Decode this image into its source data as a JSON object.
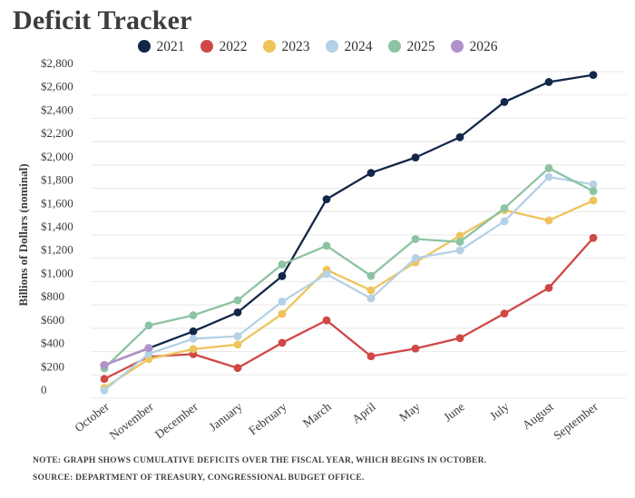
{
  "title": "Deficit Tracker",
  "footer": {
    "note": "NOTE: GRAPH SHOWS CUMULATIVE DEFICITS OVER THE FISCAL YEAR, WHICH BEGINS IN OCTOBER.",
    "source": "SOURCE: DEPARTMENT OF TREASURY, CONGRESSIONAL BUDGET OFFICE."
  },
  "colors": {
    "grid": "#e8e8e8",
    "axis_text": "#3b3b3b",
    "title_text": "#3d3d3d"
  },
  "chart_data": {
    "type": "line",
    "title": "Deficit Tracker",
    "xlabel": "",
    "ylabel": "Billions of Dollars (nominal)",
    "x": [
      "October",
      "November",
      "December",
      "January",
      "February",
      "March",
      "April",
      "May",
      "June",
      "July",
      "August",
      "September"
    ],
    "ylim": [
      0,
      2800
    ],
    "ytick_step": 200,
    "ytick_labels": [
      "0",
      "$200",
      "$400",
      "$600",
      "$800",
      "$1,000",
      "$1,200",
      "$1,400",
      "$1,600",
      "$1,800",
      "$2,000",
      "$2,200",
      "$2,400",
      "$2,600",
      "$2,800"
    ],
    "grid": true,
    "legend_position": "top",
    "series": [
      {
        "name": "2021",
        "color": "#13274a",
        "values": [
          284,
          429,
          573,
          736,
          1047,
          1706,
          1932,
          2064,
          2238,
          2540,
          2711,
          2772
        ]
      },
      {
        "name": "2022",
        "color": "#d04846",
        "values": [
          165,
          356,
          378,
          259,
          475,
          668,
          360,
          426,
          515,
          726,
          946,
          1375
        ]
      },
      {
        "name": "2023",
        "color": "#eec45b",
        "values": [
          88,
          336,
          421,
          460,
          723,
          1101,
          925,
          1165,
          1393,
          1613,
          1524,
          1695
        ]
      },
      {
        "name": "2024",
        "color": "#b5d1e6",
        "values": [
          67,
          381,
          510,
          532,
          828,
          1064,
          855,
          1202,
          1268,
          1517,
          1897,
          1833
        ]
      },
      {
        "name": "2025",
        "color": "#8cc3a2",
        "values": [
          257,
          624,
          711,
          840,
          1147,
          1307,
          1049,
          1365,
          1341,
          1629,
          1973,
          1775
        ]
      },
      {
        "name": "2026",
        "color": "#b191cb",
        "values": [
          284,
          431
        ]
      }
    ]
  }
}
